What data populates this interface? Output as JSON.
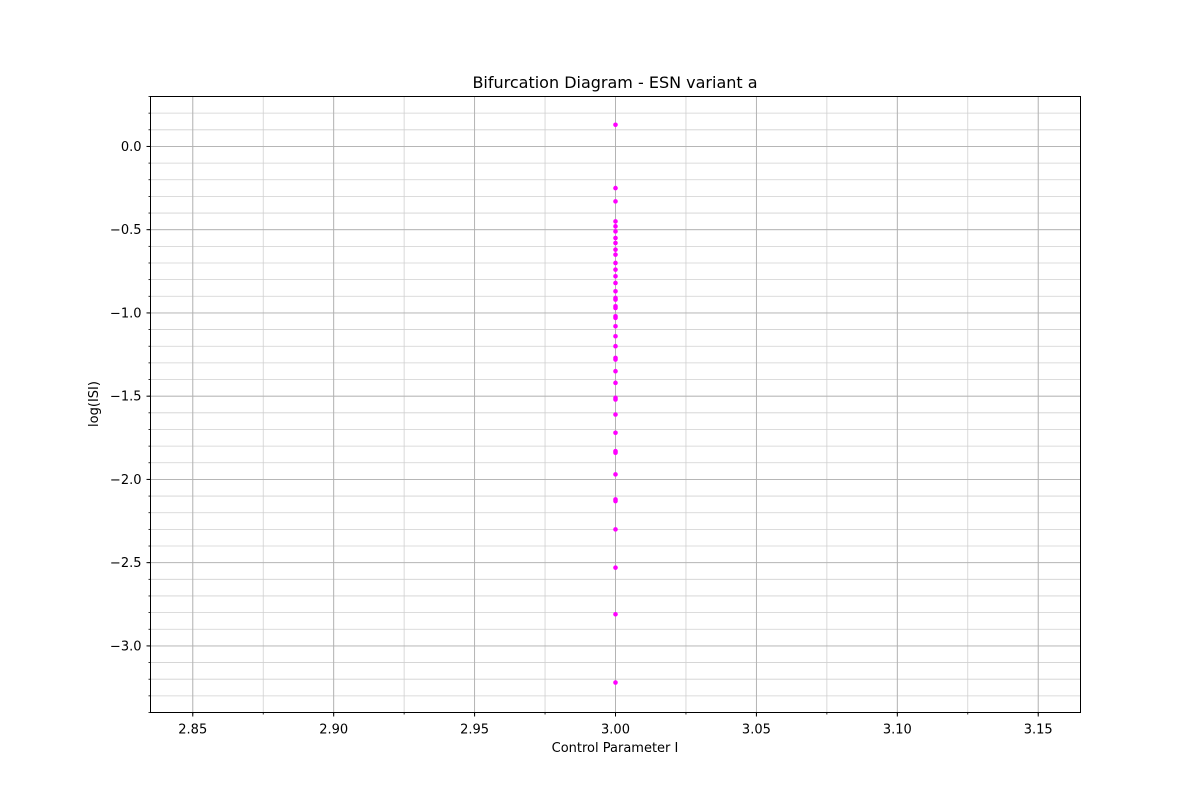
{
  "chart_data": {
    "type": "scatter",
    "title": "Bifurcation Diagram - ESN variant a",
    "xlabel": "Control Parameter I",
    "ylabel": "log(ISI)",
    "xlim": [
      2.835,
      3.165
    ],
    "ylim": [
      -3.4,
      0.3
    ],
    "xticks": [
      2.85,
      2.9,
      2.95,
      3.0,
      3.05,
      3.1,
      3.15
    ],
    "xtick_labels": [
      "2.85",
      "2.90",
      "2.95",
      "3.00",
      "3.05",
      "3.10",
      "3.15"
    ],
    "yticks": [
      0.0,
      -0.5,
      -1.0,
      -1.5,
      -2.0,
      -2.5,
      -3.0
    ],
    "ytick_labels": [
      "0.0",
      "−0.5",
      "−1.0",
      "−1.5",
      "−2.0",
      "−2.5",
      "−3.0"
    ],
    "grid": true,
    "minor_grid": true,
    "marker_color": "#ff00ff",
    "series": [
      {
        "x": [
          3.0,
          3.0,
          3.0,
          3.0,
          3.0,
          3.0,
          3.0,
          3.0,
          3.0,
          3.0,
          3.0,
          3.0,
          3.0,
          3.0,
          3.0,
          3.0,
          3.0,
          3.0,
          3.0,
          3.0,
          3.0,
          3.0,
          3.0,
          3.0,
          3.0,
          3.0,
          3.0,
          3.0,
          3.0,
          3.0,
          3.0,
          3.0,
          3.0,
          3.0,
          3.0,
          3.0,
          3.0,
          3.0,
          3.0,
          3.0,
          3.0
        ],
        "y": [
          0.13,
          -0.25,
          -0.33,
          -0.45,
          -0.48,
          -0.51,
          -0.55,
          -0.58,
          -0.62,
          -0.65,
          -0.7,
          -0.74,
          -0.78,
          -0.82,
          -0.87,
          -0.91,
          -0.96,
          -1.02,
          -1.08,
          -1.14,
          -1.2,
          -1.27,
          -1.35,
          -1.42,
          -1.51,
          -1.61,
          -1.72,
          -1.83,
          -1.97,
          -2.12,
          -2.3,
          -2.53,
          -2.81,
          -3.22,
          -0.97,
          -0.92,
          -1.03,
          -1.28,
          -1.52,
          -1.84,
          -2.13
        ]
      }
    ]
  }
}
